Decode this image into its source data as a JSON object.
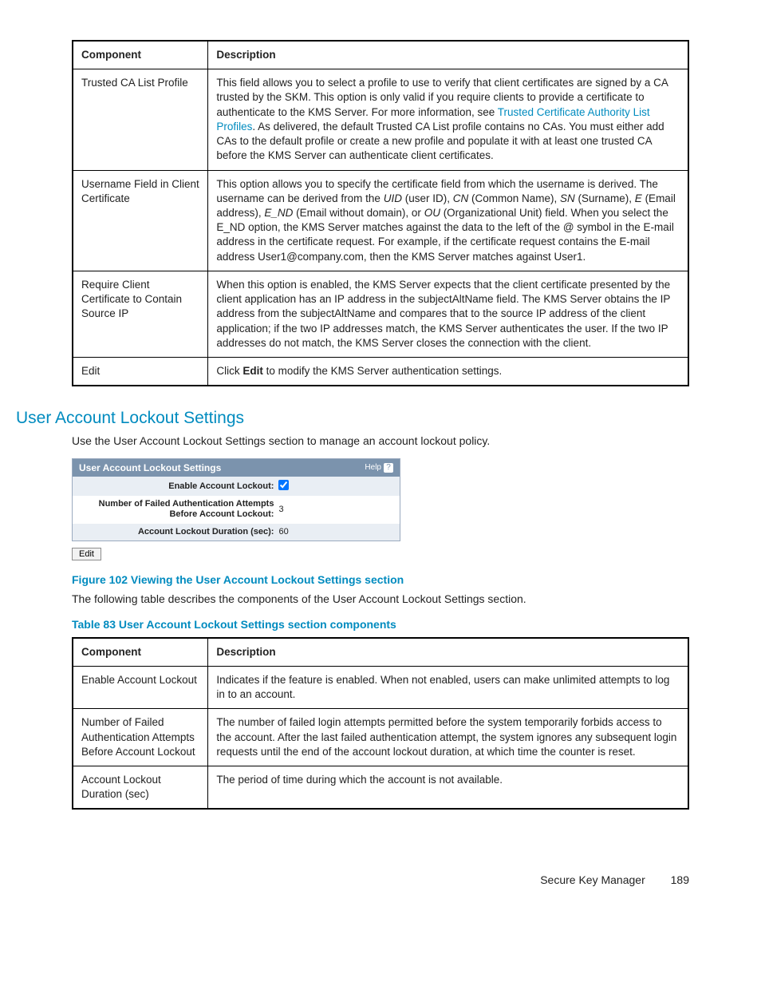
{
  "table1": {
    "headers": [
      "Component",
      "Description"
    ],
    "rows": [
      {
        "component": "Trusted CA List Profile",
        "desc_pre": "This field allows you to select a profile to use to verify that client certificates are signed by a CA trusted by the SKM. This option is only valid if you require clients to provide a certificate to authenticate to the KMS Server. For more information, see ",
        "link": "Trusted Certificate Authority List Profiles",
        "desc_post": ". As delivered, the default Trusted CA List profile contains no CAs. You must either add CAs to the default profile or create a new profile and populate it with at least one trusted CA before the KMS Server can authenticate client certificates."
      },
      {
        "component": "Username Field in Client Certificate",
        "parts": [
          {
            "t": "plain",
            "v": "This option allows you to specify the certificate field from which the username is derived. The username can be derived from the "
          },
          {
            "t": "italic",
            "v": "UID"
          },
          {
            "t": "plain",
            "v": " (user ID), "
          },
          {
            "t": "italic",
            "v": "CN"
          },
          {
            "t": "plain",
            "v": " (Common Name), "
          },
          {
            "t": "italic",
            "v": "SN"
          },
          {
            "t": "plain",
            "v": " (Surname), "
          },
          {
            "t": "italic",
            "v": "E"
          },
          {
            "t": "plain",
            "v": " (Email address), "
          },
          {
            "t": "italic",
            "v": "E_ND"
          },
          {
            "t": "plain",
            "v": " (Email without domain), or "
          },
          {
            "t": "italic",
            "v": "OU"
          },
          {
            "t": "plain",
            "v": " (Organizational Unit) field. When you select the E_ND option, the KMS Server matches against the data to the left of the @ symbol in the E-mail address in the certificate request. For example, if the certificate request contains the E-mail address User1@company.com, then the KMS Server matches against User1."
          }
        ]
      },
      {
        "component": "Require Client Certificate to Contain Source IP",
        "desc": "When this option is enabled, the KMS Server expects that the client certificate presented by the client application has an IP address in the subjectAltName field. The KMS Server obtains the IP address from the subjectAltName and compares that to the source IP address of the client application; if the two IP addresses match, the KMS Server authenticates the user. If the two IP addresses do not match, the KMS Server closes the connection with the client."
      },
      {
        "component": "Edit",
        "desc_pre2": "Click ",
        "bold": "Edit",
        "desc_post2": " to modify the KMS Server authentication settings."
      }
    ]
  },
  "section_title": "User Account Lockout Settings",
  "section_intro": "Use the User Account Lockout Settings section to manage an account lockout policy.",
  "panel": {
    "title": "User Account Lockout Settings",
    "help": "Help",
    "rows": [
      {
        "label": "Enable Account Lockout:",
        "type": "check",
        "value": true
      },
      {
        "label": "Number of Failed Authentication Attempts Before Account Lockout:",
        "type": "text",
        "value": "3"
      },
      {
        "label": "Account Lockout Duration (sec):",
        "type": "text",
        "value": "60"
      }
    ],
    "edit_btn": "Edit"
  },
  "fig_caption": "Figure 102 Viewing the User Account Lockout Settings section",
  "fig_followup": "The following table describes the components of the User Account Lockout Settings section.",
  "tab_caption": "Table 83 User Account Lockout Settings section components",
  "table2": {
    "headers": [
      "Component",
      "Description"
    ],
    "rows": [
      {
        "component": "Enable Account Lockout",
        "desc": "Indicates if the feature is enabled. When not enabled, users can make unlimited attempts to log in to an account."
      },
      {
        "component": "Number of Failed Authentication Attempts Before Account Lockout",
        "desc": "The number of failed login attempts permitted before the system temporarily forbids access to the account. After the last failed authentication attempt, the system ignores any subsequent login requests until the end of the account lockout duration, at which time the counter is reset."
      },
      {
        "component": "Account Lockout Duration (sec)",
        "desc": "The period of time during which the account is not available."
      }
    ]
  },
  "footer": {
    "title": "Secure Key Manager",
    "page": "189"
  }
}
